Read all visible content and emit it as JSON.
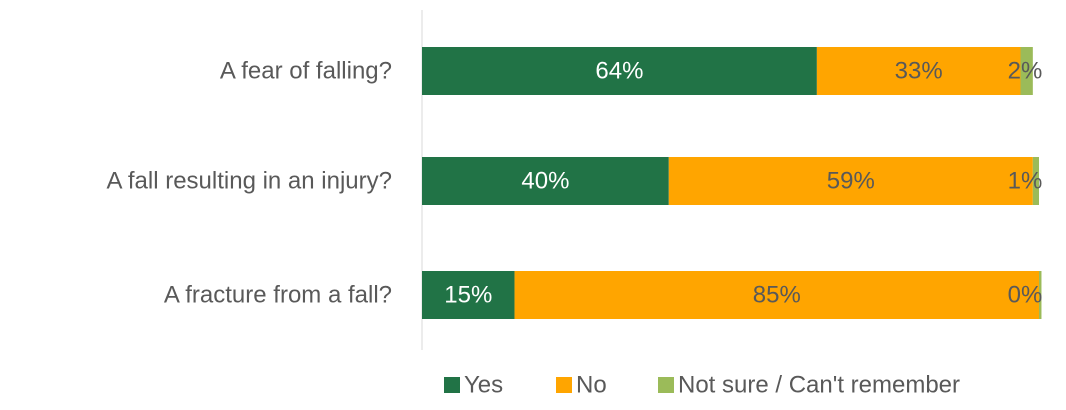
{
  "chart_data": {
    "type": "bar",
    "orientation": "horizontal",
    "stacked": true,
    "categories": [
      "A fear of falling?",
      "A fall resulting in an injury?",
      "A fracture from a fall?"
    ],
    "series": [
      {
        "name": "Yes",
        "values": [
          64,
          40,
          15
        ],
        "labels": [
          "64%",
          "40%",
          "15%"
        ],
        "color": "#217346",
        "label_color": "#ffffff"
      },
      {
        "name": "No",
        "values": [
          33,
          59,
          85
        ],
        "labels": [
          "33%",
          "59%",
          "85%"
        ],
        "color": "#FFA500",
        "label_color": "#595959"
      },
      {
        "name": "Not sure / Can't remember",
        "values": [
          2,
          1,
          0.4
        ],
        "labels": [
          "2%",
          "1%",
          "0%"
        ],
        "color": "#9BBB59",
        "label_color": "#595959"
      }
    ],
    "xlim": [
      0,
      100
    ],
    "grid": false,
    "legend_position": "bottom-right"
  }
}
